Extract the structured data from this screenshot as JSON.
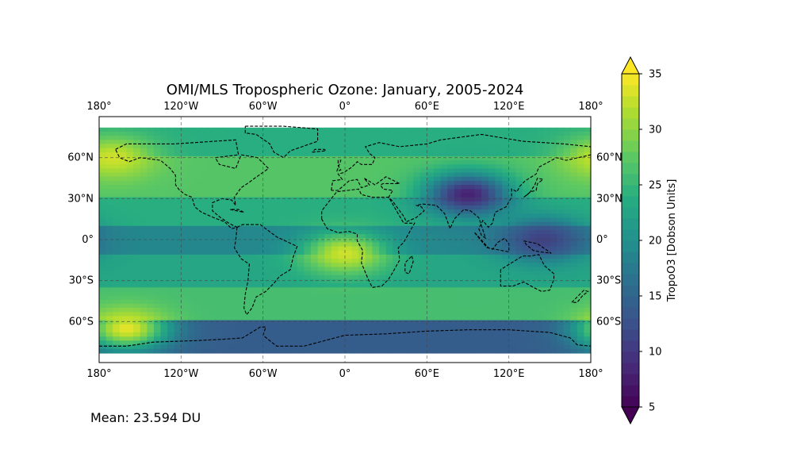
{
  "chart_data": {
    "type": "heatmap",
    "title": "OMI/MLS Tropospheric Ozone: January, 2005-2024",
    "projection": "PlateCarree",
    "xlim": [
      -180,
      180
    ],
    "ylim": [
      -90,
      90
    ],
    "x_ticks": [
      -180,
      -120,
      -60,
      0,
      60,
      120,
      180
    ],
    "x_tick_labels": [
      "180°",
      "120°W",
      "60°W",
      "0°",
      "60°E",
      "120°E",
      "180°"
    ],
    "y_ticks": [
      60,
      30,
      0,
      -30,
      -60
    ],
    "y_tick_labels": [
      "60°N",
      "30°N",
      "0°",
      "30°S",
      "60°S"
    ],
    "grid": true,
    "grid_style": "dashed",
    "coastlines": "dashed",
    "colormap": "viridis",
    "colorbar": {
      "label": "TropoO3 [Dobson Units]",
      "range": [
        5,
        35
      ],
      "ticks": [
        5,
        10,
        15,
        20,
        25,
        30,
        35
      ],
      "extend": "both"
    },
    "mean_label": "Mean: 23.594 DU",
    "zones": [
      {
        "lat": [
          60,
          83
        ],
        "value": 24
      },
      {
        "lat": [
          30,
          60
        ],
        "value": 27
      },
      {
        "lat": [
          10,
          30
        ],
        "value": 24
      },
      {
        "lat": [
          -10,
          10
        ],
        "value": 19
      },
      {
        "lat": [
          -35,
          -10
        ],
        "value": 23
      },
      {
        "lat": [
          -60,
          -35
        ],
        "value": 26
      },
      {
        "lat": [
          -83,
          -60
        ],
        "value": 14
      }
    ],
    "anomalies": [
      {
        "region": "Tibetan Plateau",
        "lon": 90,
        "lat": 33,
        "value": 8
      },
      {
        "region": "West Pacific warm pool",
        "lon": 145,
        "lat": 0,
        "value": 11
      },
      {
        "region": "Tropical Atlantic",
        "lon": 0,
        "lat": -10,
        "value": 33
      },
      {
        "region": "Southern Pacific",
        "lon": -160,
        "lat": -65,
        "value": 34
      },
      {
        "region": "North Pacific",
        "lon": -170,
        "lat": 60,
        "value": 33
      }
    ]
  }
}
